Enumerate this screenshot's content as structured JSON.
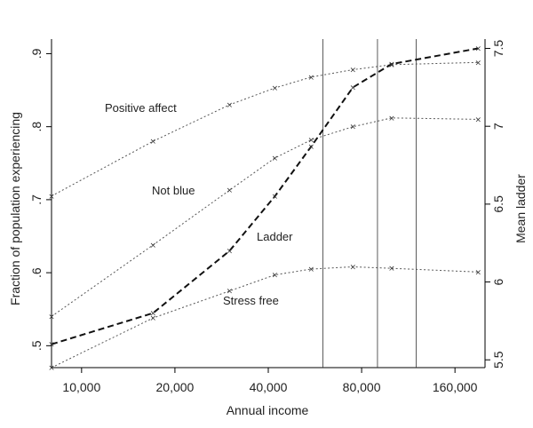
{
  "chart_data": {
    "type": "line",
    "title": "",
    "xlabel": "Annual income",
    "ylabel_left": "Fraction of population experiencing",
    "ylabel_right": "Mean ladder",
    "x_scale": "log",
    "x_ticks": [
      10000,
      20000,
      40000,
      80000,
      160000
    ],
    "x_tick_labels": [
      "10,000",
      "20,000",
      "40,000",
      "80,000",
      "160,000"
    ],
    "xlim": [
      8000,
      200000
    ],
    "ylim_left": [
      0.47,
      0.92
    ],
    "y_ticks_left": [
      0.5,
      0.6,
      0.7,
      0.8,
      0.9
    ],
    "y_tick_labels_left": [
      ".5",
      ".6",
      ".7",
      ".8",
      ".9"
    ],
    "ylim_right": [
      5.45,
      7.56
    ],
    "y_ticks_right": [
      5.5,
      6,
      6.5,
      7,
      7.5
    ],
    "y_tick_labels_right": [
      "5.5",
      "6",
      "6.5",
      "7",
      "7.5"
    ],
    "vertical_lines_x": [
      60000,
      90000,
      120000
    ],
    "grid": false,
    "legend": "none",
    "series": [
      {
        "name": "Positive affect",
        "axis": "left",
        "style": "dotted",
        "x": [
          8000,
          17000,
          30000,
          42000,
          55000,
          75000,
          100000,
          190000
        ],
        "y": [
          0.705,
          0.78,
          0.83,
          0.853,
          0.868,
          0.878,
          0.885,
          0.888
        ]
      },
      {
        "name": "Not blue",
        "axis": "left",
        "style": "dotted",
        "x": [
          8000,
          17000,
          30000,
          42000,
          55000,
          75000,
          100000,
          190000
        ],
        "y": [
          0.54,
          0.638,
          0.713,
          0.757,
          0.782,
          0.8,
          0.812,
          0.81
        ]
      },
      {
        "name": "Stress free",
        "axis": "left",
        "style": "dotted",
        "x": [
          8000,
          17000,
          30000,
          42000,
          55000,
          75000,
          100000,
          190000
        ],
        "y": [
          0.47,
          0.538,
          0.575,
          0.597,
          0.605,
          0.608,
          0.606,
          0.601
        ]
      },
      {
        "name": "Ladder",
        "axis": "right",
        "style": "dashed",
        "x": [
          8000,
          17000,
          30000,
          42000,
          55000,
          75000,
          100000,
          190000
        ],
        "y": [
          5.6,
          5.8,
          6.2,
          6.55,
          6.87,
          7.25,
          7.4,
          7.5
        ]
      }
    ]
  }
}
